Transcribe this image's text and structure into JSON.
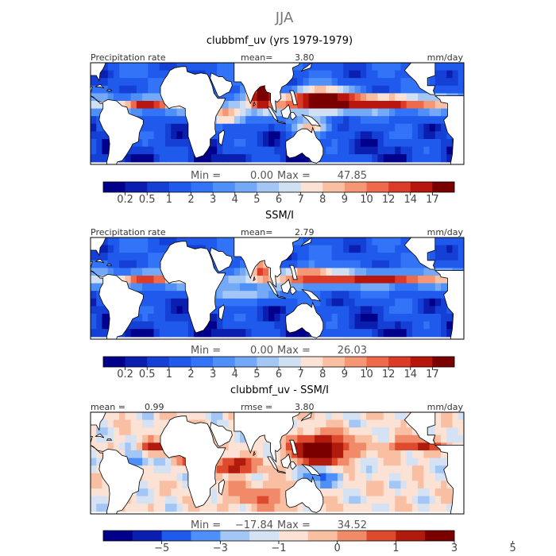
{
  "page_title": "JJA",
  "chart_data": [
    {
      "type": "heatmap",
      "title": "clubbmf_uv (yrs 1979-1979)",
      "variable": "Precipitation rate",
      "mean_label": "mean=",
      "mean_value": "3.80",
      "units": "mm/day",
      "stats": {
        "min_label": "Min =",
        "min": "0.00",
        "max_label": "Max =",
        "max": "47.85"
      },
      "colorbar_ticks": [
        "0.2",
        "0.5",
        "1",
        "2",
        "3",
        "4",
        "5",
        "6",
        "7",
        "8",
        "9",
        "10",
        "12",
        "14",
        "17"
      ],
      "colorbar_colors": [
        "#00008a",
        "#0a1fb0",
        "#1440d6",
        "#1f5aec",
        "#3273f7",
        "#4f8ff8",
        "#74a9f7",
        "#a3c6f5",
        "#d0e0f3",
        "#fbe2d4",
        "#f9bfa2",
        "#f59775",
        "#ee6a4b",
        "#dc3b27",
        "#b8150d",
        "#7a0000"
      ],
      "features": [
        {
          "lon": 20,
          "lat": 8,
          "rx": 7,
          "ry": 4,
          "amp": 12
        },
        {
          "lon": -30,
          "lat": 8,
          "rx": 20,
          "ry": 3,
          "amp": 12
        },
        {
          "lon": 90,
          "lat": 16,
          "rx": 12,
          "ry": 10,
          "amp": 20
        },
        {
          "lon": 150,
          "lat": 11,
          "rx": 30,
          "ry": 8,
          "amp": 17
        },
        {
          "lon": 215,
          "lat": 9,
          "rx": 45,
          "ry": 4,
          "amp": 14
        },
        {
          "lon": 55,
          "lat": -2,
          "rx": 20,
          "ry": 4,
          "amp": 10
        },
        {
          "lon": 140,
          "lat": -10,
          "rx": 20,
          "ry": 6,
          "amp": 6
        }
      ]
    },
    {
      "type": "heatmap",
      "title": "SSM/I",
      "variable": "Precipitation rate",
      "mean_label": "mean=",
      "mean_value": "2.79",
      "units": "mm/day",
      "stats": {
        "min_label": "Min =",
        "min": "0.00",
        "max_label": "Max =",
        "max": "26.03"
      },
      "colorbar_ticks": [
        "0.2",
        "0.5",
        "1",
        "2",
        "3",
        "4",
        "5",
        "6",
        "7",
        "8",
        "9",
        "10",
        "12",
        "14",
        "17"
      ],
      "colorbar_colors": [
        "#00008a",
        "#0a1fb0",
        "#1440d6",
        "#1f5aec",
        "#3273f7",
        "#4f8ff8",
        "#74a9f7",
        "#a3c6f5",
        "#d0e0f3",
        "#fbe2d4",
        "#f9bfa2",
        "#f59775",
        "#ee6a4b",
        "#dc3b27",
        "#b8150d",
        "#7a0000"
      ],
      "features": [
        {
          "lon": -30,
          "lat": 8,
          "rx": 22,
          "ry": 3,
          "amp": 9
        },
        {
          "lon": 90,
          "lat": 15,
          "rx": 10,
          "ry": 8,
          "amp": 9
        },
        {
          "lon": 140,
          "lat": 10,
          "rx": 25,
          "ry": 6,
          "amp": 9
        },
        {
          "lon": 210,
          "lat": 8,
          "rx": 50,
          "ry": 3,
          "amp": 11
        },
        {
          "lon": 70,
          "lat": -5,
          "rx": 25,
          "ry": 5,
          "amp": 5
        }
      ]
    },
    {
      "type": "heatmap",
      "title": "clubbmf_uv - SSM/I",
      "mean_label": "mean =",
      "mean_value": "0.99",
      "rmse_label": "rmse =",
      "rmse_value": "3.80",
      "units": "mm/day",
      "stats": {
        "min_label": "Min =",
        "min": "−17.84",
        "max_label": "Max =",
        "max": "34.52"
      },
      "colorbar_ticks": [
        "−5",
        "−3",
        "−1",
        "0",
        "1",
        "3",
        "5"
      ],
      "colorbar_colors": [
        "#00008a",
        "#0a1fb0",
        "#1f5aec",
        "#4f8ff8",
        "#a3c6f5",
        "#d4e2f3",
        "#fbe2d4",
        "#f9bfa2",
        "#f08a68",
        "#de4a2e",
        "#b01b0e",
        "#7a0000"
      ],
      "features": [
        {
          "lon": 150,
          "lat": 10,
          "rx": 25,
          "ry": 10,
          "amp": 8
        },
        {
          "lon": 20,
          "lat": 5,
          "rx": 12,
          "ry": 6,
          "amp": 6
        },
        {
          "lon": 60,
          "lat": -2,
          "rx": 20,
          "ry": 5,
          "amp": 5
        },
        {
          "lon": -20,
          "lat": 12,
          "rx": 15,
          "ry": 4,
          "amp": 4
        },
        {
          "lon": 250,
          "lat": 14,
          "rx": 30,
          "ry": 5,
          "amp": 3
        },
        {
          "lon": 150,
          "lat": -10,
          "rx": 20,
          "ry": 6,
          "amp": -3
        },
        {
          "lon": -45,
          "lat": 0,
          "rx": 10,
          "ry": 6,
          "amp": -3
        },
        {
          "lon": 90,
          "lat": -25,
          "rx": 40,
          "ry": 10,
          "amp": 1.5
        }
      ]
    }
  ]
}
